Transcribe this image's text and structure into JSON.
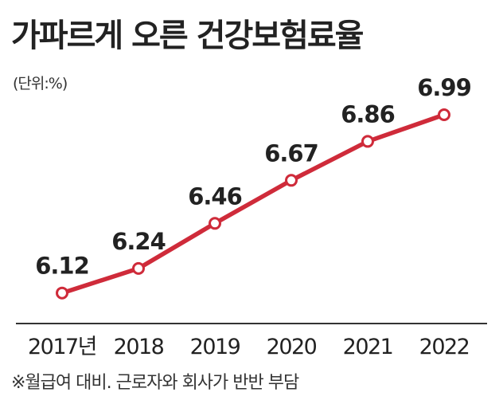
{
  "chart_data": {
    "type": "line",
    "title": "가파르게 오른 건강보험료율",
    "unit_label": "(단위:%)",
    "categories": [
      "2017년",
      "2018",
      "2019",
      "2020",
      "2021",
      "2022"
    ],
    "series": [
      {
        "values": [
          6.12,
          6.24,
          6.46,
          6.67,
          6.86,
          6.99
        ]
      }
    ],
    "data_labels": [
      "6.12",
      "6.24",
      "6.46",
      "6.67",
      "6.86",
      "6.99"
    ],
    "ylim": [
      5.8,
      7.2
    ],
    "grid": false,
    "footnote": "※월급여 대비. 근로자와 회사가 반반 부담",
    "colors": {
      "line": "#cf2b3a",
      "marker_fill": "#ffffff",
      "axis": "#333333"
    }
  }
}
